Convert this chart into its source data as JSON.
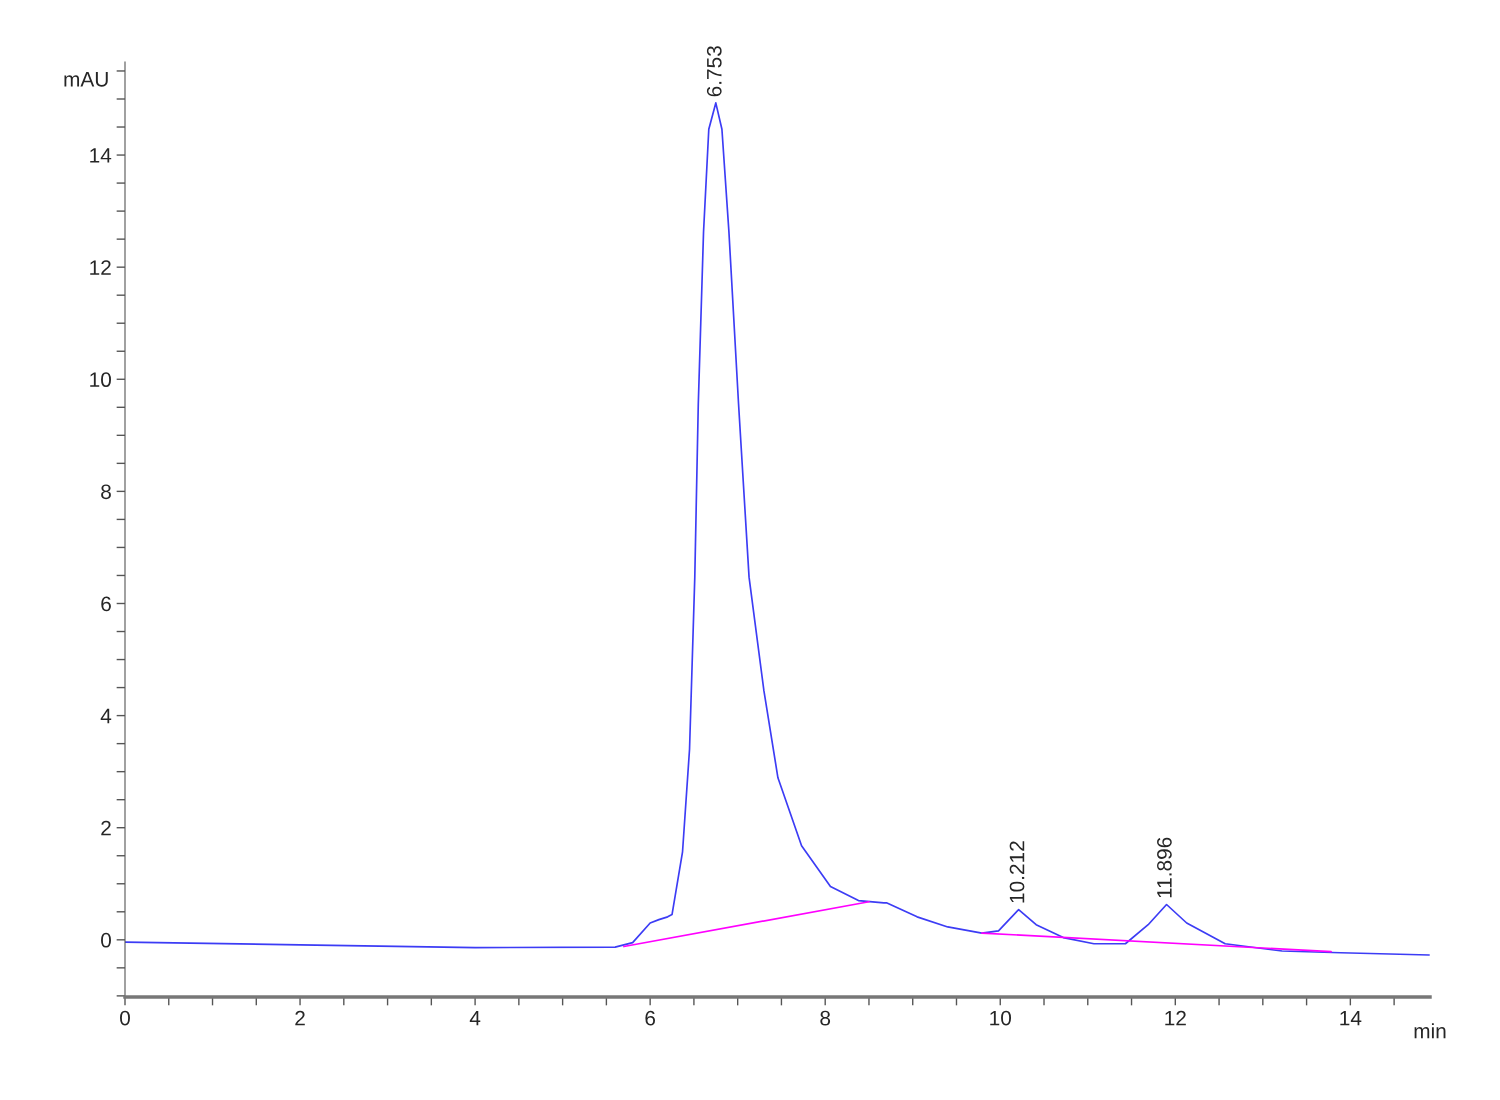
{
  "chart_data": {
    "type": "line",
    "xlabel": "min",
    "ylabel": "mAU",
    "xlim": [
      0,
      14.91
    ],
    "ylim": [
      -1.02,
      15.66
    ],
    "xticks": [
      0,
      {
        "value": 0.5,
        "label": null
      },
      2,
      {
        "value": 1,
        "label": null
      },
      {
        "value": 1.5,
        "label": null
      },
      {
        "value": 2.5,
        "label": null
      },
      {
        "value": 3,
        "label": null
      },
      {
        "value": 3.5,
        "label": null
      },
      4,
      {
        "value": 4.5,
        "label": null
      },
      {
        "value": 5,
        "label": null
      },
      {
        "value": 5.5,
        "label": null
      },
      6,
      {
        "value": 6.5,
        "label": null
      },
      {
        "value": 7,
        "label": null
      },
      {
        "value": 7.5,
        "label": null
      },
      8,
      {
        "value": 8.5,
        "label": null
      },
      {
        "value": 9,
        "label": null
      },
      {
        "value": 9.5,
        "label": null
      },
      10,
      {
        "value": 10.5,
        "label": null
      },
      {
        "value": 11,
        "label": null
      },
      {
        "value": 11.5,
        "label": null
      },
      12,
      {
        "value": 12.5,
        "label": null
      },
      {
        "value": 13,
        "label": null
      },
      {
        "value": 13.5,
        "label": null
      },
      14,
      {
        "value": 14.5,
        "label": null
      }
    ],
    "yticks": [
      {
        "value": -1,
        "label": null
      },
      {
        "value": -0.5,
        "label": null
      },
      0,
      {
        "value": 0.5,
        "label": null
      },
      {
        "value": 1,
        "label": null
      },
      {
        "value": 1.5,
        "label": null
      },
      2,
      {
        "value": 2.5,
        "label": null
      },
      {
        "value": 3,
        "label": null
      },
      {
        "value": 3.5,
        "label": null
      },
      4,
      {
        "value": 4.5,
        "label": null
      },
      {
        "value": 5,
        "label": null
      },
      {
        "value": 5.5,
        "label": null
      },
      6,
      {
        "value": 6.5,
        "label": null
      },
      {
        "value": 7,
        "label": null
      },
      {
        "value": 7.5,
        "label": null
      },
      8,
      {
        "value": 8.5,
        "label": null
      },
      {
        "value": 9,
        "label": null
      },
      {
        "value": 9.5,
        "label": null
      },
      10,
      {
        "value": 10.5,
        "label": null
      },
      {
        "value": 11,
        "label": null
      },
      {
        "value": 11.5,
        "label": null
      },
      12,
      {
        "value": 12.5,
        "label": null
      },
      {
        "value": 13,
        "label": null
      },
      {
        "value": 13.5,
        "label": null
      },
      14,
      {
        "value": 14.5,
        "label": null
      },
      {
        "value": 15,
        "label": null
      },
      {
        "value": 15.5,
        "label": null
      }
    ],
    "grid": false,
    "legend": false,
    "series": [
      {
        "color": "#3c3cf5",
        "x": [
          0,
          2,
          4,
          5.6,
          5.8,
          6.0,
          6.1,
          6.2,
          6.25,
          6.37,
          6.45,
          6.51,
          6.55,
          6.61,
          6.67,
          6.75,
          6.82,
          6.9,
          7.01,
          7.13,
          7.3,
          7.46,
          7.73,
          8.06,
          8.38,
          8.67,
          8.7,
          9.05,
          9.4,
          9.79,
          9.98,
          10.21,
          10.41,
          10.72,
          11.07,
          11.43,
          11.69,
          11.9,
          12.13,
          12.57,
          13.22,
          13.89,
          14.9
        ],
        "values": [
          -0.04,
          -0.09,
          -0.14,
          -0.13,
          -0.05,
          0.3,
          0.36,
          0.41,
          0.45,
          1.57,
          3.4,
          6.47,
          9.56,
          12.63,
          14.46,
          14.93,
          14.46,
          12.63,
          9.56,
          6.47,
          4.44,
          2.89,
          1.68,
          0.95,
          0.7,
          0.66,
          0.66,
          0.41,
          0.23,
          0.12,
          0.16,
          0.54,
          0.27,
          0.04,
          -0.07,
          -0.07,
          0.27,
          0.63,
          0.3,
          -0.07,
          -0.2,
          -0.23,
          -0.27
        ]
      },
      {
        "color": "#ff00ff",
        "x": [
          5.7,
          8.5,
          9.15,
          9.79,
          13.78
        ],
        "values": [
          -0.12,
          0.68,
          null,
          0.12,
          -0.21
        ]
      }
    ],
    "annotations": [
      {
        "text": "6.753",
        "x": 6.753,
        "y": 14.93
      },
      {
        "text": "10.212",
        "x": 10.212,
        "y": 0.54
      },
      {
        "text": "11.896",
        "x": 11.896,
        "y": 0.63
      }
    ]
  }
}
